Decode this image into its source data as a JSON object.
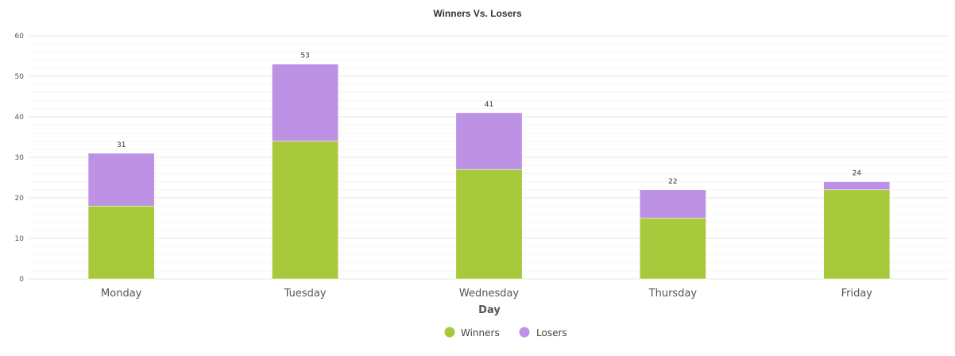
{
  "chart_data": {
    "type": "bar",
    "stacked": true,
    "title": "Winners Vs. Losers",
    "xlabel": "Day",
    "ylabel": "",
    "ylim": [
      0,
      60
    ],
    "yticks": [
      0,
      10,
      20,
      30,
      40,
      50,
      60
    ],
    "grid": true,
    "legend_position": "bottom",
    "categories": [
      "Monday",
      "Tuesday",
      "Wednesday",
      "Thursday",
      "Friday"
    ],
    "series": [
      {
        "name": "Winners",
        "values": [
          18,
          34,
          27,
          15,
          22
        ],
        "color": "#a8c93c"
      },
      {
        "name": "Losers",
        "values": [
          13,
          19,
          14,
          7,
          2
        ],
        "color": "#bd92e4"
      }
    ],
    "totals": [
      31,
      53,
      41,
      22,
      24
    ]
  }
}
